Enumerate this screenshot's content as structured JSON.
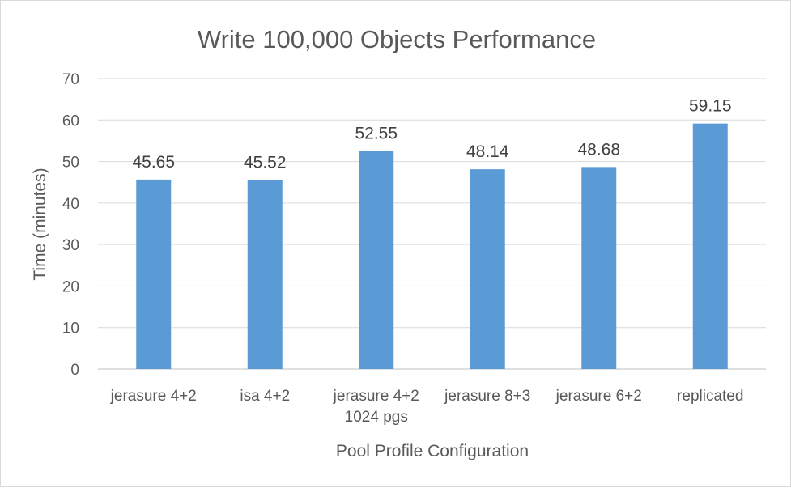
{
  "chart_data": {
    "type": "bar",
    "title": "Write 100,000 Objects Performance",
    "xlabel": "Pool Profile Configuration",
    "ylabel": "Time (minutes)",
    "categories": [
      [
        "jerasure 4+2"
      ],
      [
        "isa 4+2"
      ],
      [
        "jerasure 4+2",
        "1024 pgs"
      ],
      [
        "jerasure 8+3"
      ],
      [
        "jerasure 6+2"
      ],
      [
        "replicated"
      ]
    ],
    "values": [
      45.65,
      45.52,
      52.55,
      48.14,
      48.68,
      59.15
    ],
    "data_labels": [
      "45.65",
      "45.52",
      "52.55",
      "48.14",
      "48.68",
      "59.15"
    ],
    "ylim": [
      0,
      70
    ],
    "yticks": [
      0,
      10,
      20,
      30,
      40,
      50,
      60,
      70
    ],
    "grid": true,
    "legend": "none",
    "colors": {
      "bar": "#5b9bd5",
      "grid": "#d9d9d9",
      "text": "#595959"
    }
  }
}
